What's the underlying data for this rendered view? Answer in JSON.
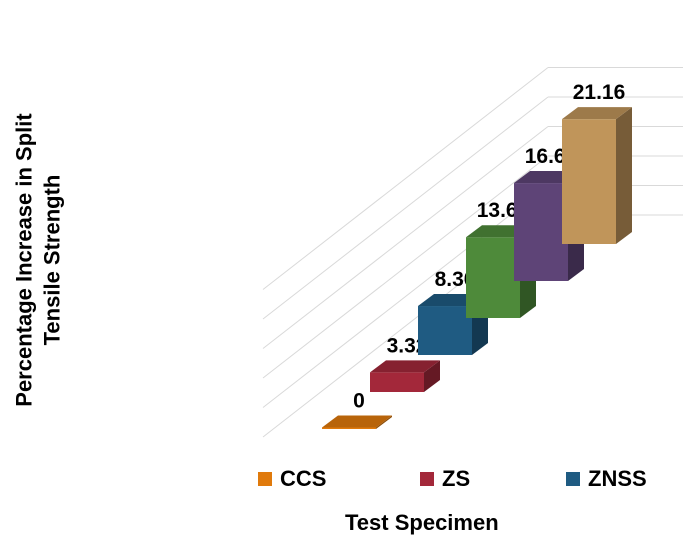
{
  "chart_data": {
    "type": "bar",
    "style": "3d-staircase",
    "categories": [
      "CCS",
      "ZS",
      "ZNSS",
      "",
      "",
      ""
    ],
    "values": [
      0,
      3.32,
      8.3,
      13.69,
      16.6,
      21.16
    ],
    "data_labels": [
      "0",
      "3.32",
      "8.30",
      "13.69",
      "16.60",
      "21.16"
    ],
    "colors": [
      "#E07A0C",
      "#A3283A",
      "#1F5B82",
      "#4E8A3A",
      "#5E4477",
      "#C0955A"
    ],
    "ylabel": "Percentage Increase in Split Tensile Strength",
    "xlabel": "Test Specimen",
    "ylim": [
      0,
      25
    ],
    "grid": true,
    "legend_position": "bottom",
    "legend": [
      {
        "label": "CCS",
        "color": "#E07A0C"
      },
      {
        "label": "ZS",
        "color": "#A3283A"
      },
      {
        "label": "ZNSS",
        "color": "#1F5B82"
      }
    ]
  },
  "axis": {
    "ylabel_line1": "Percentage Increase in Split",
    "ylabel_line2": "Tensile Strength",
    "xlabel": "Test Specimen"
  }
}
